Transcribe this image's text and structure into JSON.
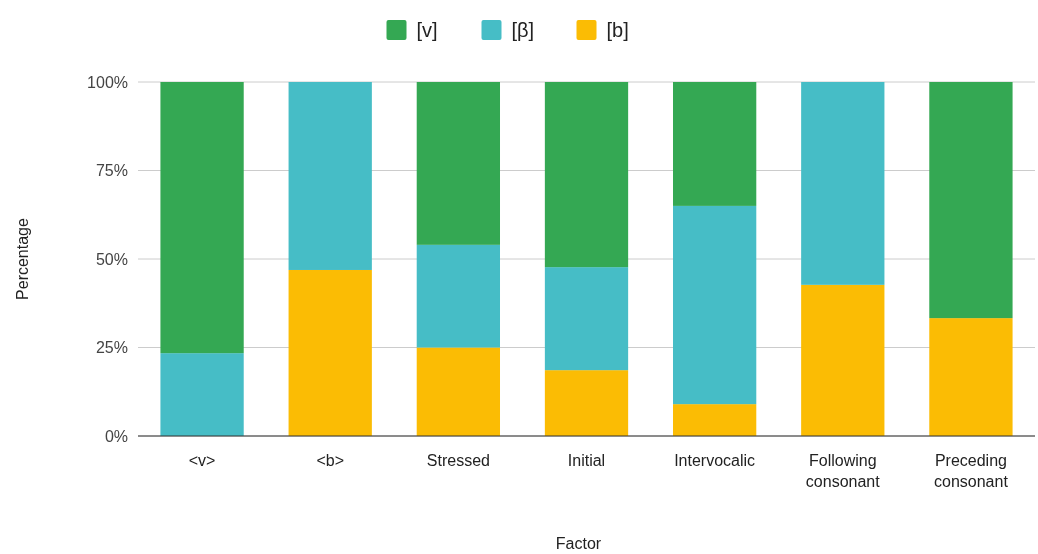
{
  "chart_data": {
    "type": "bar",
    "stacked": true,
    "xlabel": "Factor",
    "ylabel": "Percentage",
    "categories": [
      "<v>",
      "<b>",
      "Stressed",
      "Initial",
      "Intervocalic",
      "Following consonant",
      "Preceding consonant"
    ],
    "series": [
      {
        "name": "[b]",
        "color": "#fbbc04",
        "values": [
          0,
          46.9,
          25,
          18.6,
          9,
          42.7,
          33.3
        ]
      },
      {
        "name": "[β]",
        "color": "#46bdc6",
        "values": [
          23.4,
          53.1,
          29,
          29.1,
          56,
          57.3,
          0
        ]
      },
      {
        "name": "[v]",
        "color": "#34a853",
        "values": [
          76.6,
          0,
          46,
          52.3,
          35,
          0,
          66.7
        ]
      }
    ],
    "ylim": [
      0,
      100
    ],
    "yticks": [
      {
        "value": 0,
        "label": "0%"
      },
      {
        "value": 25,
        "label": "25%"
      },
      {
        "value": 50,
        "label": "50%"
      },
      {
        "value": 75,
        "label": "75%"
      },
      {
        "value": 100,
        "label": "100%"
      }
    ],
    "grid": "y",
    "legend": "top"
  }
}
